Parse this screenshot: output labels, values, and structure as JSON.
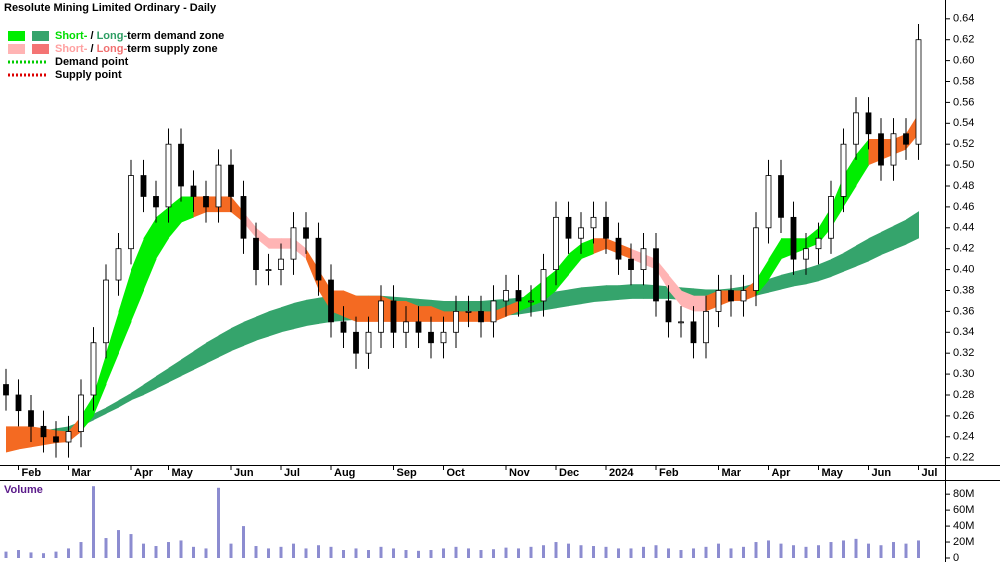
{
  "chart_data": [
    {
      "type": "candlestick",
      "title": "Resolute Mining Limited Ordinary - Daily",
      "categories": [
        null,
        "Feb",
        null,
        null,
        null,
        "Mar",
        null,
        null,
        null,
        null,
        "Apr",
        null,
        null,
        "May",
        null,
        null,
        null,
        null,
        "Jun",
        null,
        null,
        null,
        "Jul",
        null,
        null,
        null,
        "Aug",
        null,
        null,
        null,
        null,
        "Sep",
        null,
        null,
        null,
        "Oct",
        null,
        null,
        null,
        null,
        "Nov",
        null,
        null,
        null,
        "Dec",
        null,
        null,
        null,
        "2024",
        null,
        null,
        null,
        "Feb",
        null,
        null,
        null,
        null,
        "Mar",
        null,
        null,
        null,
        "Apr",
        null,
        null,
        null,
        "May",
        null,
        null,
        null,
        "Jun",
        null,
        null,
        null,
        "Jul"
      ],
      "open": [
        0.29,
        0.28,
        0.265,
        0.25,
        0.24,
        0.235,
        0.245,
        0.28,
        0.33,
        0.39,
        0.42,
        0.49,
        0.47,
        0.46,
        0.52,
        0.48,
        0.47,
        0.46,
        0.5,
        0.47,
        0.43,
        0.4,
        0.4,
        0.41,
        0.44,
        0.43,
        0.39,
        0.35,
        0.34,
        0.32,
        0.34,
        0.37,
        0.34,
        0.35,
        0.34,
        0.33,
        0.34,
        0.36,
        0.36,
        0.35,
        0.37,
        0.38,
        0.37,
        0.37,
        0.4,
        0.45,
        0.43,
        0.44,
        0.45,
        0.43,
        0.41,
        0.4,
        0.42,
        0.37,
        0.35,
        0.35,
        0.33,
        0.36,
        0.38,
        0.37,
        0.38,
        0.44,
        0.49,
        0.45,
        0.41,
        0.42,
        0.43,
        0.47,
        0.52,
        0.55,
        0.53,
        0.5,
        0.53,
        0.52
      ],
      "high": [
        0.305,
        0.295,
        0.28,
        0.265,
        0.255,
        0.26,
        0.295,
        0.345,
        0.405,
        0.435,
        0.505,
        0.505,
        0.485,
        0.535,
        0.535,
        0.495,
        0.485,
        0.515,
        0.515,
        0.485,
        0.445,
        0.415,
        0.425,
        0.455,
        0.455,
        0.445,
        0.405,
        0.365,
        0.355,
        0.355,
        0.385,
        0.385,
        0.365,
        0.365,
        0.355,
        0.355,
        0.375,
        0.375,
        0.375,
        0.385,
        0.395,
        0.395,
        0.385,
        0.415,
        0.465,
        0.465,
        0.455,
        0.465,
        0.465,
        0.445,
        0.425,
        0.435,
        0.435,
        0.385,
        0.365,
        0.365,
        0.375,
        0.395,
        0.395,
        0.395,
        0.455,
        0.505,
        0.505,
        0.465,
        0.435,
        0.445,
        0.485,
        0.535,
        0.565,
        0.565,
        0.545,
        0.545,
        0.545,
        0.635
      ],
      "low": [
        0.265,
        0.25,
        0.235,
        0.225,
        0.22,
        0.22,
        0.23,
        0.265,
        0.315,
        0.375,
        0.405,
        0.455,
        0.445,
        0.445,
        0.465,
        0.455,
        0.445,
        0.445,
        0.455,
        0.415,
        0.385,
        0.385,
        0.385,
        0.395,
        0.415,
        0.375,
        0.335,
        0.325,
        0.305,
        0.305,
        0.325,
        0.325,
        0.325,
        0.325,
        0.315,
        0.315,
        0.325,
        0.345,
        0.335,
        0.335,
        0.355,
        0.355,
        0.355,
        0.355,
        0.385,
        0.415,
        0.415,
        0.425,
        0.415,
        0.395,
        0.385,
        0.385,
        0.355,
        0.335,
        0.335,
        0.315,
        0.315,
        0.345,
        0.355,
        0.355,
        0.365,
        0.425,
        0.435,
        0.395,
        0.395,
        0.405,
        0.415,
        0.455,
        0.505,
        0.515,
        0.485,
        0.485,
        0.505,
        0.505
      ],
      "close": [
        0.28,
        0.265,
        0.25,
        0.24,
        0.235,
        0.245,
        0.28,
        0.33,
        0.39,
        0.42,
        0.49,
        0.47,
        0.46,
        0.52,
        0.48,
        0.47,
        0.46,
        0.5,
        0.47,
        0.43,
        0.4,
        0.4,
        0.41,
        0.44,
        0.43,
        0.39,
        0.35,
        0.34,
        0.32,
        0.34,
        0.37,
        0.34,
        0.35,
        0.34,
        0.33,
        0.34,
        0.36,
        0.36,
        0.35,
        0.37,
        0.38,
        0.37,
        0.37,
        0.4,
        0.45,
        0.43,
        0.44,
        0.45,
        0.43,
        0.41,
        0.4,
        0.42,
        0.37,
        0.35,
        0.35,
        0.33,
        0.36,
        0.38,
        0.37,
        0.38,
        0.44,
        0.49,
        0.45,
        0.41,
        0.42,
        0.43,
        0.47,
        0.52,
        0.55,
        0.53,
        0.5,
        0.53,
        0.52,
        0.62
      ],
      "up_color": "#ffffff",
      "down_color": "#000000",
      "zones": {
        "long": {
          "state": "long_demand",
          "upper": [
            0.24,
            0.242,
            0.244,
            0.246,
            0.248,
            0.25,
            0.255,
            0.262,
            0.268,
            0.275,
            0.282,
            0.29,
            0.298,
            0.306,
            0.314,
            0.322,
            0.33,
            0.337,
            0.344,
            0.35,
            0.355,
            0.36,
            0.364,
            0.368,
            0.371,
            0.373,
            0.375,
            0.375,
            0.375,
            0.375,
            0.375,
            0.374,
            0.373,
            0.372,
            0.371,
            0.37,
            0.37,
            0.37,
            0.37,
            0.371,
            0.372,
            0.373,
            0.375,
            0.377,
            0.379,
            0.381,
            0.383,
            0.384,
            0.385,
            0.385,
            0.386,
            0.386,
            0.385,
            0.384,
            0.383,
            0.382,
            0.381,
            0.381,
            0.382,
            0.384,
            0.387,
            0.391,
            0.395,
            0.398,
            0.401,
            0.405,
            0.41,
            0.416,
            0.423,
            0.43,
            0.436,
            0.442,
            0.448,
            0.456
          ],
          "lower": [
            0.235,
            0.236,
            0.238,
            0.24,
            0.242,
            0.245,
            0.25,
            0.256,
            0.262,
            0.268,
            0.275,
            0.28,
            0.286,
            0.292,
            0.298,
            0.304,
            0.31,
            0.316,
            0.322,
            0.327,
            0.332,
            0.336,
            0.34,
            0.343,
            0.346,
            0.348,
            0.35,
            0.351,
            0.352,
            0.352,
            0.353,
            0.353,
            0.353,
            0.353,
            0.353,
            0.353,
            0.353,
            0.353,
            0.354,
            0.355,
            0.356,
            0.357,
            0.359,
            0.361,
            0.363,
            0.365,
            0.367,
            0.369,
            0.37,
            0.371,
            0.372,
            0.372,
            0.372,
            0.372,
            0.371,
            0.37,
            0.37,
            0.37,
            0.371,
            0.373,
            0.375,
            0.378,
            0.381,
            0.384,
            0.386,
            0.389,
            0.393,
            0.398,
            0.403,
            0.408,
            0.414,
            0.419,
            0.424,
            0.43
          ]
        },
        "short": {
          "upper": [
            0.25,
            0.25,
            0.25,
            0.248,
            0.246,
            0.245,
            0.26,
            0.28,
            0.32,
            0.36,
            0.4,
            0.43,
            0.45,
            0.46,
            0.47,
            0.47,
            0.47,
            0.47,
            0.47,
            0.455,
            0.44,
            0.43,
            0.43,
            0.43,
            0.42,
            0.4,
            0.38,
            0.38,
            0.375,
            0.375,
            0.375,
            0.37,
            0.37,
            0.365,
            0.365,
            0.36,
            0.36,
            0.36,
            0.36,
            0.36,
            0.365,
            0.37,
            0.38,
            0.39,
            0.4,
            0.415,
            0.425,
            0.43,
            0.43,
            0.425,
            0.42,
            0.415,
            0.41,
            0.395,
            0.38,
            0.375,
            0.375,
            0.38,
            0.38,
            0.38,
            0.39,
            0.41,
            0.43,
            0.43,
            0.43,
            0.44,
            0.46,
            0.49,
            0.51,
            0.525,
            0.525,
            0.525,
            0.53,
            0.55
          ],
          "lower": [
            0.225,
            0.228,
            0.23,
            0.232,
            0.234,
            0.235,
            0.245,
            0.26,
            0.29,
            0.32,
            0.35,
            0.38,
            0.41,
            0.43,
            0.445,
            0.45,
            0.455,
            0.455,
            0.455,
            0.445,
            0.43,
            0.42,
            0.42,
            0.42,
            0.41,
            0.38,
            0.36,
            0.355,
            0.35,
            0.35,
            0.35,
            0.35,
            0.35,
            0.35,
            0.35,
            0.35,
            0.35,
            0.35,
            0.35,
            0.35,
            0.355,
            0.36,
            0.365,
            0.37,
            0.38,
            0.395,
            0.41,
            0.415,
            0.42,
            0.415,
            0.41,
            0.405,
            0.4,
            0.38,
            0.365,
            0.36,
            0.36,
            0.365,
            0.37,
            0.37,
            0.375,
            0.39,
            0.41,
            0.415,
            0.42,
            0.425,
            0.44,
            0.46,
            0.48,
            0.5,
            0.505,
            0.51,
            0.515,
            0.53
          ],
          "states": [
            "mixed",
            "mixed",
            "mixed",
            "mixed",
            "mixed",
            "mixed",
            "short_demand",
            "short_demand",
            "short_demand",
            "short_demand",
            "short_demand",
            "short_demand",
            "short_demand",
            "short_demand",
            "short_demand",
            "mixed",
            "mixed",
            "mixed",
            "mixed",
            "short_supply",
            "short_supply",
            "short_supply",
            "short_supply",
            "short_supply",
            "mixed",
            "mixed",
            "mixed",
            "mixed",
            "mixed",
            "mixed",
            "mixed",
            "mixed",
            "mixed",
            "mixed",
            "mixed",
            "mixed",
            "mixed",
            "mixed",
            "mixed",
            "mixed",
            "mixed",
            "short_demand",
            "short_demand",
            "short_demand",
            "short_demand",
            "short_demand",
            "short_demand",
            "mixed",
            "mixed",
            "mixed",
            "short_supply",
            "short_supply",
            "short_supply",
            "short_supply",
            "short_supply",
            "short_supply",
            "mixed",
            "mixed",
            "mixed",
            "mixed",
            "short_demand",
            "short_demand",
            "short_demand",
            "short_demand",
            "short_demand",
            "short_demand",
            "short_demand",
            "short_demand",
            "short_demand",
            "mixed",
            "mixed",
            "mixed",
            "mixed",
            "short_demand"
          ]
        }
      },
      "zone_colors": {
        "short_demand": "#00ee00",
        "long_demand": "#35a46c",
        "short_supply": "#ffb4b4",
        "long_supply": "#f47474",
        "mixed": "#f46a22"
      },
      "legend": [
        {
          "swatches": [
            "short_demand",
            "long_demand"
          ],
          "runs": [
            {
              "text": "Short-",
              "color": "#00dd00"
            },
            {
              "text": " / "
            },
            {
              "text": "Long-",
              "color": "#2e9e64"
            },
            {
              "text": "term demand zone"
            }
          ]
        },
        {
          "swatches": [
            "short_supply",
            "long_supply"
          ],
          "runs": [
            {
              "text": "Short-",
              "color": "#ffa0a0"
            },
            {
              "text": " / "
            },
            {
              "text": "Long-",
              "color": "#f07070"
            },
            {
              "text": "term supply zone"
            }
          ]
        },
        {
          "line": "#00cc00",
          "runs": [
            {
              "text": "Demand point"
            }
          ]
        },
        {
          "line": "#dd0000",
          "runs": [
            {
              "text": "Supply point"
            }
          ]
        }
      ],
      "ylim": [
        0.213,
        0.658
      ],
      "yticks": [
        0.22,
        0.24,
        0.26,
        0.28,
        {
          "value": 0.3,
          "label": "0.30"
        },
        0.32,
        0.34,
        0.36,
        0.38,
        {
          "value": 0.4,
          "label": "0.40"
        },
        0.42,
        0.44,
        0.46,
        0.48,
        {
          "value": 0.5,
          "label": "0.50"
        },
        0.52,
        0.54,
        0.56,
        0.58,
        {
          "value": 0.6,
          "label": "0.60"
        },
        0.62,
        0.64
      ]
    },
    {
      "type": "bar",
      "title": "Volume",
      "color": "#8c8cd0",
      "values": [
        8000000,
        10000000,
        7000000,
        6000000,
        8000000,
        12000000,
        20000000,
        90000000,
        25000000,
        35000000,
        30000000,
        18000000,
        15000000,
        20000000,
        22000000,
        14000000,
        12000000,
        88000000,
        18000000,
        40000000,
        15000000,
        12000000,
        14000000,
        18000000,
        12000000,
        16000000,
        14000000,
        10000000,
        12000000,
        10000000,
        14000000,
        12000000,
        10000000,
        9000000,
        10000000,
        12000000,
        14000000,
        12000000,
        10000000,
        11000000,
        13000000,
        12000000,
        14000000,
        16000000,
        20000000,
        18000000,
        16000000,
        15000000,
        14000000,
        12000000,
        12000000,
        14000000,
        16000000,
        12000000,
        10000000,
        12000000,
        14000000,
        18000000,
        12000000,
        14000000,
        20000000,
        22000000,
        18000000,
        16000000,
        14000000,
        16000000,
        20000000,
        22000000,
        24000000,
        18000000,
        16000000,
        20000000,
        18000000,
        22000000
      ],
      "ylim": [
        0,
        94000000
      ],
      "yticks": [
        0,
        {
          "value": 20000000,
          "label": "20M"
        },
        {
          "value": 40000000,
          "label": "40M"
        },
        {
          "value": 60000000,
          "label": "60M"
        },
        {
          "value": 80000000,
          "label": "80M"
        }
      ]
    }
  ]
}
